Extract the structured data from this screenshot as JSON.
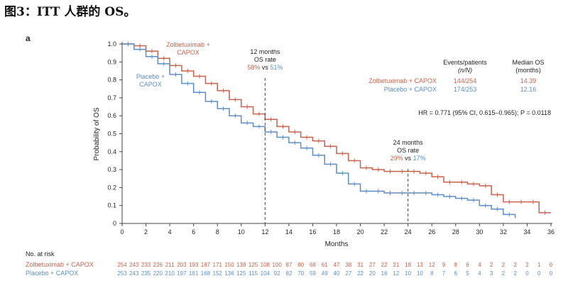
{
  "caption": "图3：ITT 人群的 OS。",
  "chart_data": {
    "type": "line",
    "subtype": "kaplan-meier",
    "panel_label": "a",
    "xlabel": "Months",
    "ylabel": "Probability of OS",
    "xlim": [
      0,
      36
    ],
    "ylim": [
      0,
      1.0
    ],
    "xticks": [
      0,
      2,
      4,
      6,
      8,
      10,
      12,
      14,
      16,
      18,
      20,
      22,
      24,
      26,
      28,
      30,
      32,
      34,
      36
    ],
    "yticks": [
      0,
      0.1,
      0.2,
      0.3,
      0.4,
      0.5,
      0.6,
      0.7,
      0.8,
      0.9,
      1.0
    ],
    "ytick_labels": [
      "0",
      "0.1",
      "0.2",
      "0.3",
      "0.4",
      "0.5",
      "0.6",
      "0.7",
      "0.8",
      "0.9",
      "1.0"
    ],
    "series": [
      {
        "name": "Zolbetuximab + CAPOX",
        "label_lines": [
          "Zolbetuximab +",
          "CAPOX"
        ],
        "color": "#c8624a",
        "x": [
          0,
          1,
          2,
          3,
          4,
          5,
          6,
          7,
          8,
          9,
          10,
          11,
          12,
          13,
          14,
          15,
          16,
          17,
          18,
          19,
          20,
          21,
          22,
          23,
          24,
          25,
          26,
          27,
          28,
          29,
          30,
          31,
          32,
          33,
          34,
          35,
          36
        ],
        "y": [
          1.0,
          0.99,
          0.96,
          0.92,
          0.88,
          0.85,
          0.82,
          0.78,
          0.74,
          0.69,
          0.65,
          0.61,
          0.58,
          0.54,
          0.51,
          0.48,
          0.46,
          0.43,
          0.39,
          0.35,
          0.31,
          0.3,
          0.29,
          0.29,
          0.29,
          0.28,
          0.26,
          0.23,
          0.23,
          0.22,
          0.21,
          0.16,
          0.12,
          0.12,
          0.12,
          0.06,
          0.06
        ]
      },
      {
        "name": "Placebo + CAPOX",
        "label_lines": [
          "Placebo +",
          "CAPOX"
        ],
        "color": "#5b8ec6",
        "x": [
          0,
          1,
          2,
          3,
          4,
          5,
          6,
          7,
          8,
          9,
          10,
          11,
          12,
          13,
          14,
          15,
          16,
          17,
          18,
          19,
          20,
          21,
          22,
          23,
          24,
          25,
          26,
          27,
          28,
          29,
          30,
          31,
          32,
          33
        ],
        "y": [
          1.0,
          0.97,
          0.93,
          0.89,
          0.83,
          0.78,
          0.73,
          0.68,
          0.64,
          0.6,
          0.56,
          0.54,
          0.51,
          0.48,
          0.45,
          0.42,
          0.38,
          0.33,
          0.28,
          0.22,
          0.18,
          0.18,
          0.17,
          0.17,
          0.17,
          0.17,
          0.16,
          0.15,
          0.14,
          0.13,
          0.1,
          0.08,
          0.05,
          0.03
        ]
      }
    ],
    "annotations": [
      {
        "x": 12,
        "title_lines": [
          "12 months",
          "OS rate"
        ],
        "rate_a": "58%",
        "vs": "vs",
        "rate_b": "51%"
      },
      {
        "x": 24,
        "title_lines": [
          "24 months",
          "OS rate"
        ],
        "rate_a": "29%",
        "vs": "vs",
        "rate_b": "17%"
      }
    ],
    "summary_table": {
      "headers": [
        "Events/patients",
        "Median OS"
      ],
      "subheaders": [
        "(n/N)",
        "(months)"
      ],
      "rows": [
        {
          "label": "Zolbetuximab + CAPOX",
          "events": "144/254",
          "median": "14.39"
        },
        {
          "label": "Placebo + CAPOX",
          "events": "174/253",
          "median": "12.16"
        }
      ]
    },
    "hr_text": "HR = 0.771 (95% CI, 0.615–0.965); P = 0.0118",
    "risk_table": {
      "title": "No. at risk",
      "rows": [
        {
          "label": "Zolbetuximab + CAPOX",
          "values": [
            "254",
            "243",
            "233",
            "226",
            "211",
            "203",
            "193",
            "187",
            "171",
            "150",
            "138",
            "125",
            "108",
            "100",
            "87",
            "80",
            "68",
            "61",
            "47",
            "38",
            "31",
            "27",
            "22",
            "21",
            "18",
            "13",
            "12",
            "9",
            "8",
            "6",
            "4",
            "2",
            "2",
            "2",
            "2",
            "1",
            "0"
          ]
        },
        {
          "label": "Placebo + CAPOX",
          "values": [
            "253",
            "243",
            "235",
            "220",
            "210",
            "197",
            "181",
            "168",
            "152",
            "136",
            "125",
            "115",
            "104",
            "92",
            "82",
            "70",
            "59",
            "49",
            "40",
            "27",
            "22",
            "20",
            "16",
            "12",
            "10",
            "10",
            "8",
            "7",
            "6",
            "5",
            "4",
            "3",
            "2",
            "2",
            "0",
            "0",
            "0"
          ]
        }
      ]
    }
  }
}
